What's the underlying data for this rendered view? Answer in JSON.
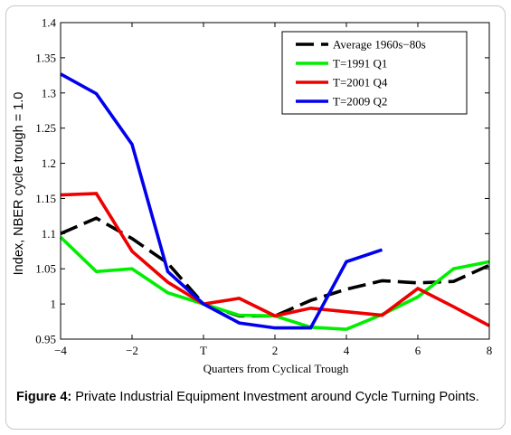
{
  "chart_data": {
    "type": "line",
    "xlabel": "Quarters from Cyclical Trough",
    "ylabel": "Index, NBER cycle trough = 1.0",
    "xlim": [
      -4,
      8
    ],
    "ylim": [
      0.95,
      1.4
    ],
    "x_ticks": [
      {
        "value": -4,
        "label": "−4"
      },
      {
        "value": -2,
        "label": "−2"
      },
      {
        "value": 0,
        "label": "T"
      },
      {
        "value": 2,
        "label": "2"
      },
      {
        "value": 4,
        "label": "4"
      },
      {
        "value": 6,
        "label": "6"
      },
      {
        "value": 8,
        "label": "8"
      }
    ],
    "y_ticks": [
      {
        "value": 0.95,
        "label": "0.95"
      },
      {
        "value": 1.0,
        "label": "1"
      },
      {
        "value": 1.05,
        "label": "1.05"
      },
      {
        "value": 1.1,
        "label": "1.1"
      },
      {
        "value": 1.15,
        "label": "1.15"
      },
      {
        "value": 1.2,
        "label": "1.2"
      },
      {
        "value": 1.25,
        "label": "1.25"
      },
      {
        "value": 1.3,
        "label": "1.3"
      },
      {
        "value": 1.35,
        "label": "1.35"
      },
      {
        "value": 1.4,
        "label": "1.4"
      }
    ],
    "grid": false,
    "legend_position": "top-right",
    "series": [
      {
        "name": "Average 1960s−80s",
        "color": "#000000",
        "dashed": true,
        "x": [
          -4,
          -3,
          -2,
          -1,
          0,
          1,
          2,
          3,
          4,
          5,
          6,
          7,
          8
        ],
        "y": [
          1.1,
          1.122,
          1.093,
          1.058,
          1.0,
          0.983,
          0.983,
          1.005,
          1.021,
          1.033,
          1.03,
          1.032,
          1.055
        ]
      },
      {
        "name": "T=1991 Q1",
        "color": "#00ee00",
        "dashed": false,
        "x": [
          -4,
          -3,
          -2,
          -1,
          0,
          1,
          2,
          3,
          4,
          5,
          6,
          7,
          8
        ],
        "y": [
          1.095,
          1.046,
          1.05,
          1.016,
          1.0,
          0.984,
          0.983,
          0.967,
          0.964,
          0.985,
          1.01,
          1.05,
          1.06
        ]
      },
      {
        "name": "T=2001 Q4",
        "color": "#ee0000",
        "dashed": false,
        "x": [
          -4,
          -3,
          -2,
          -1,
          0,
          1,
          2,
          3,
          4,
          5,
          6,
          7,
          8
        ],
        "y": [
          1.155,
          1.157,
          1.075,
          1.031,
          1.0,
          1.008,
          0.983,
          0.994,
          0.989,
          0.984,
          1.022,
          0.996,
          0.969
        ]
      },
      {
        "name": "T=2009 Q2",
        "color": "#0000ee",
        "dashed": false,
        "x": [
          -4,
          -3,
          -2,
          -1,
          0,
          1,
          2,
          3,
          4,
          5
        ],
        "y": [
          1.327,
          1.299,
          1.227,
          1.046,
          1.0,
          0.973,
          0.966,
          0.966,
          1.06,
          1.077
        ]
      }
    ]
  },
  "caption": {
    "label": "Figure 4:",
    "text": " Private Industrial Equipment Investment around Cycle Turning Points."
  }
}
